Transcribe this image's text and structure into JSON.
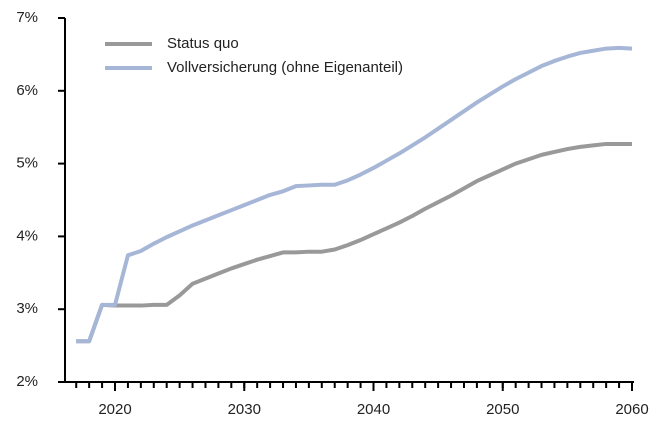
{
  "chart_data": {
    "type": "line",
    "x": [
      2017,
      2018,
      2019,
      2020,
      2021,
      2022,
      2023,
      2024,
      2025,
      2026,
      2027,
      2028,
      2029,
      2030,
      2031,
      2032,
      2033,
      2034,
      2035,
      2036,
      2037,
      2038,
      2039,
      2040,
      2041,
      2042,
      2043,
      2044,
      2045,
      2046,
      2047,
      2048,
      2049,
      2050,
      2051,
      2052,
      2053,
      2054,
      2055,
      2056,
      2057,
      2058,
      2059,
      2060
    ],
    "series": [
      {
        "name": "Status quo",
        "color": "#999999",
        "values": [
          2.56,
          2.56,
          3.06,
          3.05,
          3.05,
          3.05,
          3.06,
          3.06,
          3.19,
          3.35,
          3.42,
          3.49,
          3.56,
          3.62,
          3.68,
          3.73,
          3.78,
          3.78,
          3.79,
          3.79,
          3.82,
          3.88,
          3.95,
          4.03,
          4.11,
          4.19,
          4.28,
          4.38,
          4.47,
          4.56,
          4.66,
          4.76,
          4.84,
          4.92,
          5.0,
          5.06,
          5.12,
          5.16,
          5.2,
          5.23,
          5.25,
          5.27,
          5.27,
          5.27
        ]
      },
      {
        "name": "Vollversicherung (ohne Eigenanteil)",
        "color": "#a6b6d6",
        "values": [
          2.56,
          2.56,
          3.06,
          3.06,
          3.74,
          3.8,
          3.9,
          3.99,
          4.07,
          4.15,
          4.22,
          4.29,
          4.36,
          4.43,
          4.5,
          4.57,
          4.62,
          4.69,
          4.7,
          4.71,
          4.71,
          4.77,
          4.85,
          4.94,
          5.04,
          5.14,
          5.25,
          5.36,
          5.48,
          5.6,
          5.72,
          5.84,
          5.95,
          6.06,
          6.16,
          6.25,
          6.34,
          6.41,
          6.47,
          6.52,
          6.55,
          6.58,
          6.59,
          6.58
        ]
      }
    ],
    "xlim": [
      2016,
      2060
    ],
    "xticks": [
      2020,
      2030,
      2040,
      2050,
      2060
    ],
    "ylim": [
      2,
      7
    ],
    "yticks": [
      {
        "value": 2,
        "label": "2%"
      },
      {
        "value": 3,
        "label": "3%"
      },
      {
        "value": 4,
        "label": "4%"
      },
      {
        "value": 5,
        "label": "5%"
      },
      {
        "value": 6,
        "label": "6%"
      },
      {
        "value": 7,
        "label": "7%"
      }
    ]
  }
}
